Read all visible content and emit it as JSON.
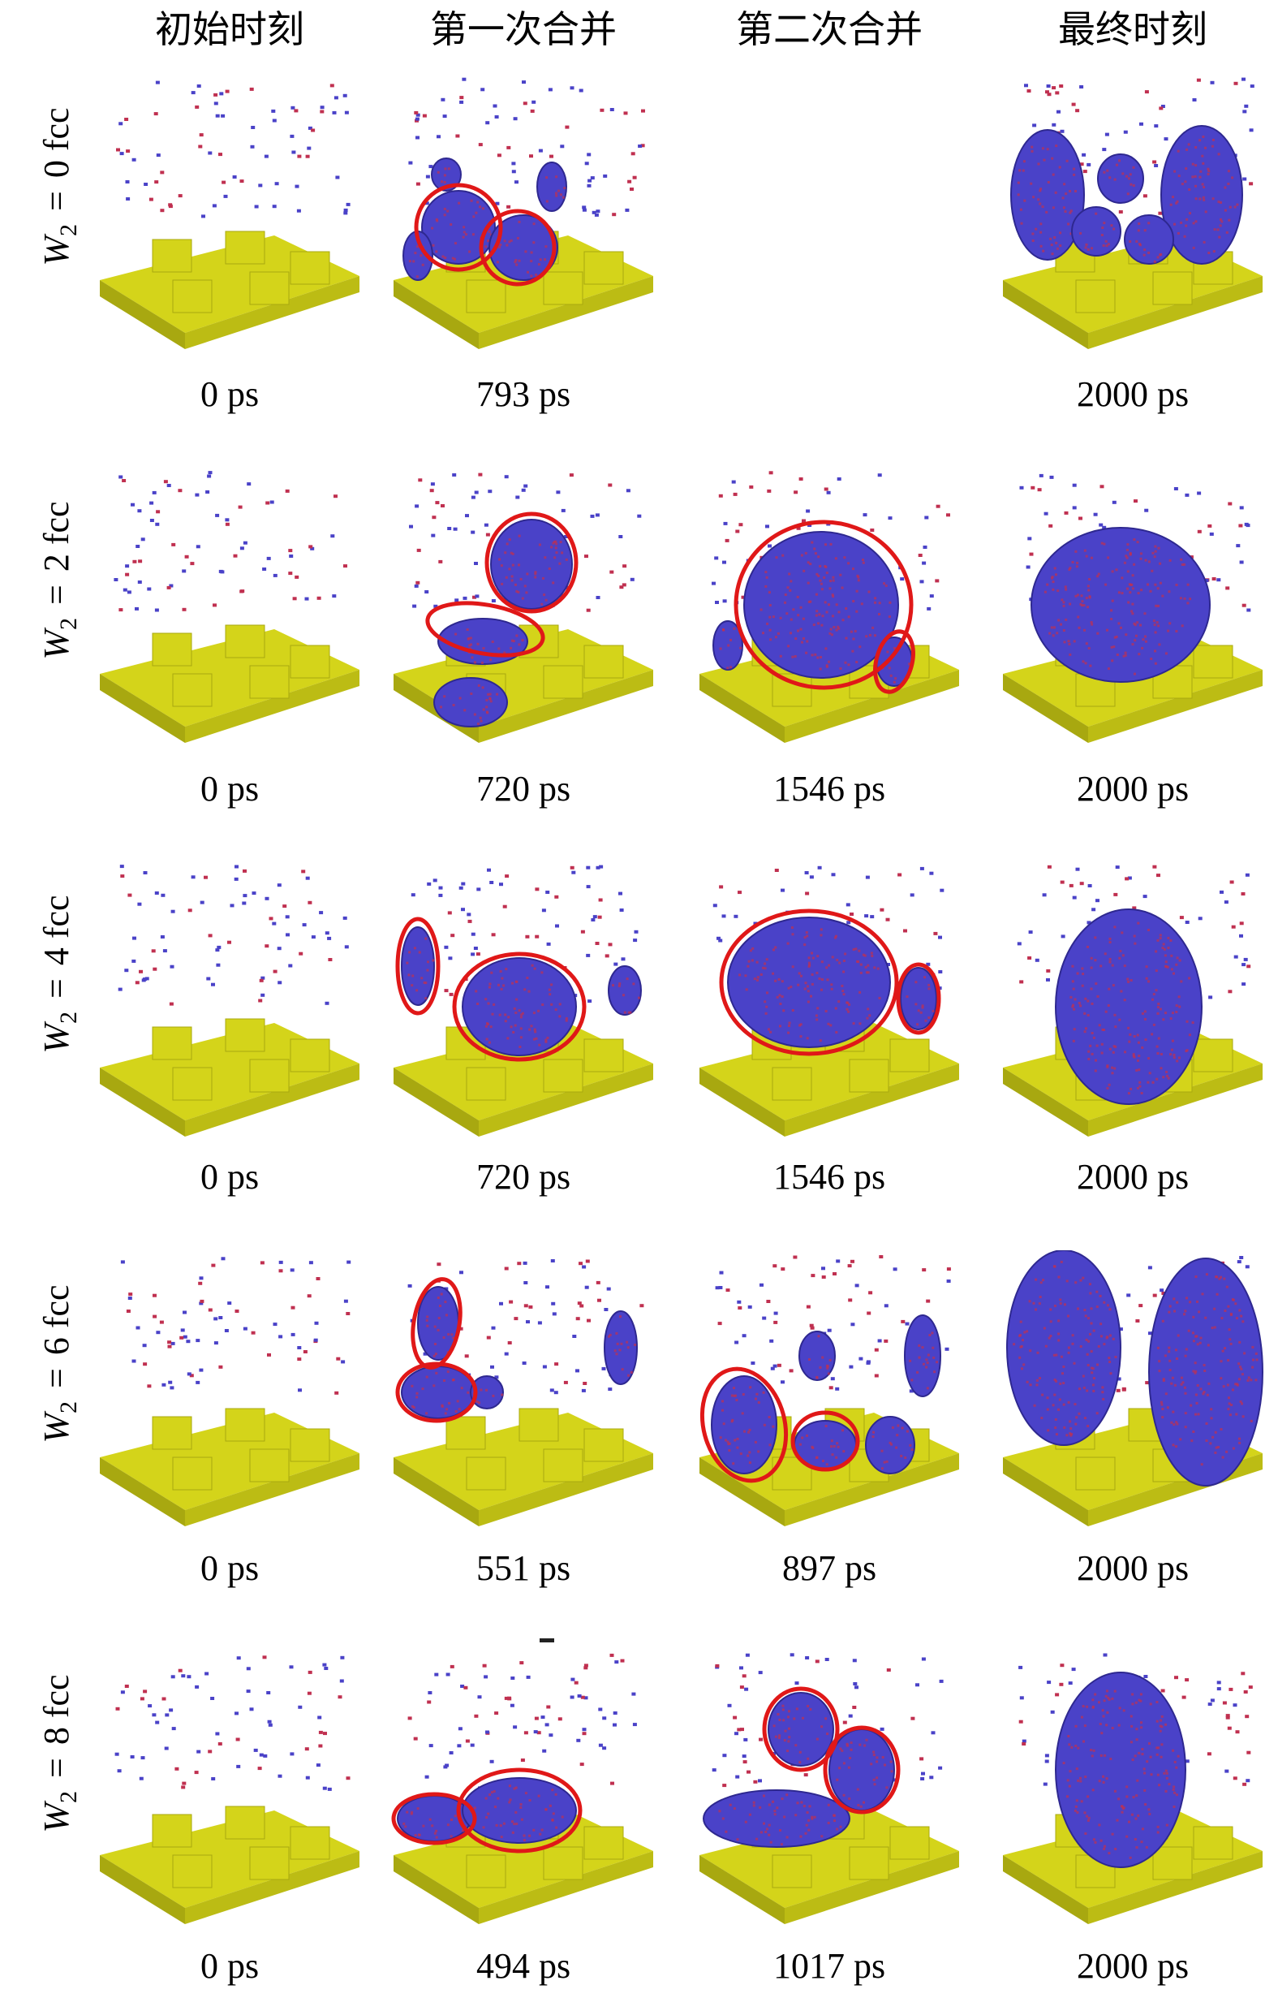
{
  "headers": [
    "初始时刻",
    "第一次合并",
    "第二次合并",
    "最终时刻"
  ],
  "rows": [
    {
      "w_symbol": "W",
      "w_sub": "2",
      "w_eq": "=",
      "w_value": "0 fcc",
      "captions": [
        "0 ps",
        "793 ps",
        "",
        "2000 ps"
      ]
    },
    {
      "w_symbol": "W",
      "w_sub": "2",
      "w_eq": "=",
      "w_value": "2 fcc",
      "captions": [
        "0 ps",
        "720 ps",
        "1546 ps",
        "2000 ps"
      ]
    },
    {
      "w_symbol": "W",
      "w_sub": "2",
      "w_eq": "=",
      "w_value": "4 fcc",
      "captions": [
        "0 ps",
        "720 ps",
        "1546 ps",
        "2000 ps"
      ]
    },
    {
      "w_symbol": "W",
      "w_sub": "2",
      "w_eq": "=",
      "w_value": "6 fcc",
      "captions": [
        "0 ps",
        "551 ps",
        "897 ps",
        "2000 ps"
      ]
    },
    {
      "w_symbol": "W",
      "w_sub": "2",
      "w_eq": "=",
      "w_value": "8 fcc",
      "captions": [
        "0 ps",
        "494 ps",
        "1017 ps",
        "2000 ps"
      ]
    }
  ],
  "colors": {
    "substrate": "#d4d41a",
    "substrate_dark": "#a8a810",
    "cluster": "#4a42c8",
    "cluster_dark": "#2e2890",
    "highlight": "#e01818",
    "atom_red": "#c03050"
  }
}
